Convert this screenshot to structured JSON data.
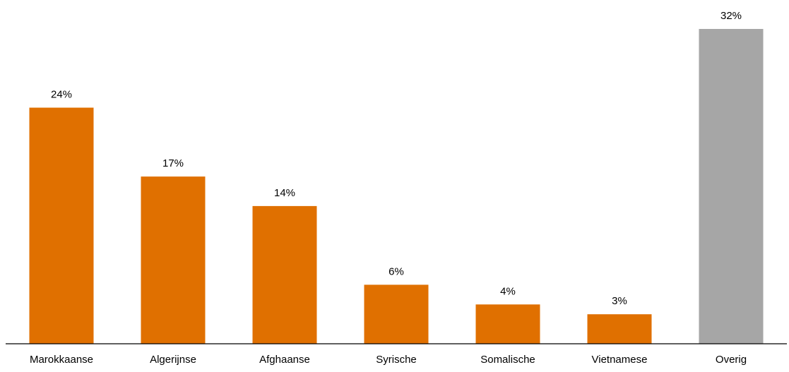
{
  "chart_data": {
    "type": "bar",
    "categories": [
      "Marokkaanse",
      "Algerijnse",
      "Afghaanse",
      "Syrische",
      "Somalische",
      "Vietnamese",
      "Overig"
    ],
    "values": [
      24,
      17,
      14,
      6,
      4,
      3,
      32
    ],
    "data_labels": [
      "24%",
      "17%",
      "14%",
      "6%",
      "4%",
      "3%",
      "32%"
    ],
    "colors": [
      "#E07000",
      "#E07000",
      "#E07000",
      "#E07000",
      "#E07000",
      "#E07000",
      "#A6A6A6"
    ],
    "axis_line_color": "#000000",
    "ylim": [
      0,
      32
    ],
    "grid": false,
    "legend": "none"
  }
}
